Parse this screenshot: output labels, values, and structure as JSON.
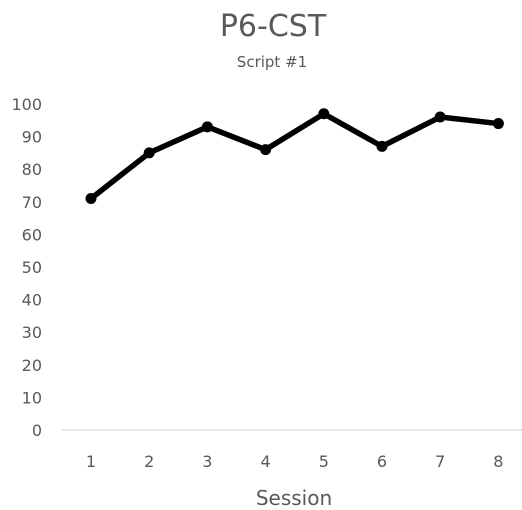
{
  "chart_data": {
    "type": "line",
    "title": "P6-CST",
    "subtitle": "Script #1",
    "xlabel": "Session",
    "ylabel": "",
    "x": [
      1,
      2,
      3,
      4,
      5,
      6,
      7,
      8
    ],
    "x_tick_labels": [
      "1",
      "2",
      "3",
      "4",
      "5",
      "6",
      "7",
      "8"
    ],
    "y_tick_labels": [
      "0",
      "10",
      "20",
      "30",
      "40",
      "50",
      "60",
      "70",
      "80",
      "90",
      "100"
    ],
    "y_ticks": [
      0,
      10,
      20,
      30,
      40,
      50,
      60,
      70,
      80,
      90,
      100
    ],
    "ylim": [
      0,
      100
    ],
    "series": [
      {
        "values": [
          71,
          85,
          93,
          86,
          97,
          87,
          96,
          94
        ]
      }
    ],
    "grid": false,
    "legend": "none",
    "colors": {
      "line": "#000000",
      "marker": "#000000",
      "text": "#595959",
      "axis": "#d9d9d9"
    }
  }
}
